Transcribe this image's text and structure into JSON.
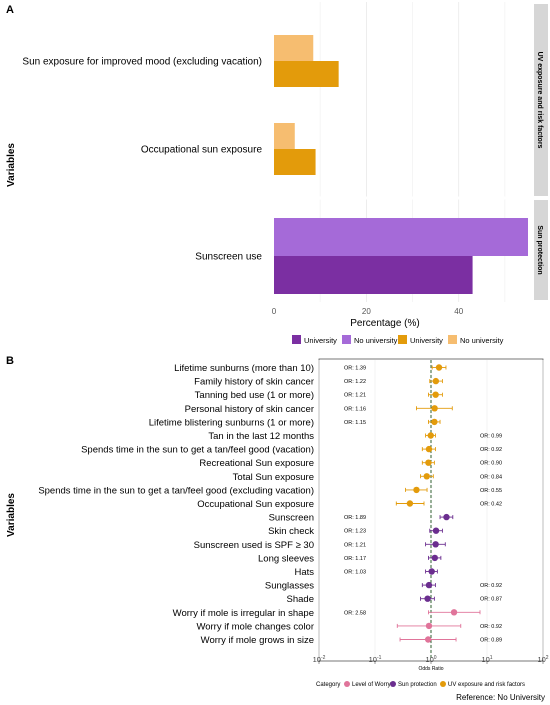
{
  "panel_a": {
    "letter": "A",
    "ylabel": "Variables",
    "xlabel": "Percentage (%)",
    "legend": [
      "University",
      "No university",
      "University",
      "No university"
    ],
    "strips": [
      "UV exposure and risk factors",
      "Sun protection"
    ],
    "colors": {
      "sp_university": "#7b2fa2",
      "sp_no_university": "#a56ad8",
      "uv_university": "#e39b0b",
      "uv_no_university": "#f6bd70"
    }
  },
  "panel_b": {
    "letter": "B",
    "ylabel": "Variables",
    "xlabel": "Odds Ratio",
    "legend_title": "Category",
    "legend": [
      "Level of Worry",
      "Sun protection",
      "UV exposure and risk factors"
    ],
    "reference": "Reference: No University",
    "colors": {
      "Level of Worry": "#e0749a",
      "Sun protection": "#6b2e8f",
      "UV exposure and risk factors": "#e39b0b"
    }
  },
  "chart_data": [
    {
      "type": "bar",
      "orientation": "horizontal",
      "xlabel": "Percentage (%)",
      "ylabel": "Variables",
      "xlim": [
        0,
        55
      ],
      "xticks": [
        0,
        20,
        40
      ],
      "facets": [
        "UV exposure and risk factors",
        "Sun protection"
      ],
      "categories": [
        "Sun exposure for improved mood (excluding vacation)",
        "Occupational sun exposure",
        "Sunscreen use"
      ],
      "series": [
        {
          "name": "No university",
          "values": [
            8.5,
            4.5,
            55
          ]
        },
        {
          "name": "University",
          "values": [
            14,
            9,
            43
          ]
        }
      ]
    },
    {
      "type": "scatter",
      "subtype": "forest",
      "xlabel": "Odds Ratio",
      "ylabel": "Variables",
      "xscale": "log",
      "xlim": [
        0.01,
        100
      ],
      "xticks": [
        "10^-2",
        "10^-1",
        "10^0",
        "10^1",
        "10^2"
      ],
      "reference_line": 1,
      "rows": [
        {
          "label": "Lifetime sunburns (more than 10)",
          "or": 1.39,
          "lo": 1.05,
          "hi": 1.85,
          "or_label": "OR: 1.39",
          "category": "UV exposure and risk factors"
        },
        {
          "label": "Family history of skin cancer",
          "or": 1.22,
          "lo": 0.95,
          "hi": 1.6,
          "or_label": "OR: 1.22",
          "category": "UV exposure and risk factors"
        },
        {
          "label": "Tanning bed use (1 or more)",
          "or": 1.21,
          "lo": 0.9,
          "hi": 1.6,
          "or_label": "OR: 1.21",
          "category": "UV exposure and risk factors"
        },
        {
          "label": "Personal history of skin cancer",
          "or": 1.16,
          "lo": 0.55,
          "hi": 2.4,
          "or_label": "OR: 1.16",
          "category": "UV exposure and risk factors"
        },
        {
          "label": "Lifetime blistering sunburns (1 or more)",
          "or": 1.15,
          "lo": 0.9,
          "hi": 1.45,
          "or_label": "OR: 1.15",
          "category": "UV exposure and risk factors"
        },
        {
          "label": "Tan in the last 12 months",
          "or": 0.99,
          "lo": 0.8,
          "hi": 1.2,
          "or_label": "OR: 0.99",
          "category": "UV exposure and risk factors"
        },
        {
          "label": "Spends time in the sun to get a tan/feel good (vacation)",
          "or": 0.92,
          "lo": 0.7,
          "hi": 1.2,
          "or_label": "OR: 0.92",
          "category": "UV exposure and risk factors"
        },
        {
          "label": "Recreational Sun exposure",
          "or": 0.9,
          "lo": 0.7,
          "hi": 1.15,
          "or_label": "OR: 0.90",
          "category": "UV exposure and risk factors"
        },
        {
          "label": "Total Sun exposure",
          "or": 0.84,
          "lo": 0.65,
          "hi": 1.1,
          "or_label": "OR: 0.84",
          "category": "UV exposure and risk factors"
        },
        {
          "label": "Spends time in the sun to get a tan/feel good (excluding vacation)",
          "or": 0.55,
          "lo": 0.35,
          "hi": 0.85,
          "or_label": "OR: 0.55",
          "category": "UV exposure and risk factors"
        },
        {
          "label": "Occupational Sun exposure",
          "or": 0.42,
          "lo": 0.24,
          "hi": 0.75,
          "or_label": "OR: 0.42",
          "category": "UV exposure and risk factors"
        },
        {
          "label": "Sunscreen",
          "or": 1.89,
          "lo": 1.45,
          "hi": 2.45,
          "or_label": "OR: 1.89",
          "category": "Sun protection"
        },
        {
          "label": "Skin check",
          "or": 1.23,
          "lo": 0.95,
          "hi": 1.6,
          "or_label": "OR: 1.23",
          "category": "Sun protection"
        },
        {
          "label": "Sunscreen used is SPF ≥ 30",
          "or": 1.21,
          "lo": 0.8,
          "hi": 1.8,
          "or_label": "OR: 1.21",
          "category": "Sun protection"
        },
        {
          "label": "Long sleeves",
          "or": 1.17,
          "lo": 0.9,
          "hi": 1.5,
          "or_label": "OR: 1.17",
          "category": "Sun protection"
        },
        {
          "label": "Hats",
          "or": 1.03,
          "lo": 0.8,
          "hi": 1.3,
          "or_label": "OR: 1.03",
          "category": "Sun protection"
        },
        {
          "label": "Sunglasses",
          "or": 0.92,
          "lo": 0.7,
          "hi": 1.2,
          "or_label": "OR: 0.92",
          "category": "Sun protection"
        },
        {
          "label": "Shade",
          "or": 0.87,
          "lo": 0.65,
          "hi": 1.15,
          "or_label": "OR: 0.87",
          "category": "Sun protection"
        },
        {
          "label": "Worry if mole is irregular in shape",
          "or": 2.58,
          "lo": 0.9,
          "hi": 7.5,
          "or_label": "OR: 2.58",
          "category": "Level of Worry"
        },
        {
          "label": "Worry if mole changes color",
          "or": 0.92,
          "lo": 0.25,
          "hi": 3.4,
          "or_label": "OR: 0.92",
          "category": "Level of Worry"
        },
        {
          "label": "Worry if mole grows in size",
          "or": 0.89,
          "lo": 0.28,
          "hi": 2.8,
          "or_label": "OR: 0.89",
          "category": "Level of Worry"
        }
      ]
    }
  ]
}
